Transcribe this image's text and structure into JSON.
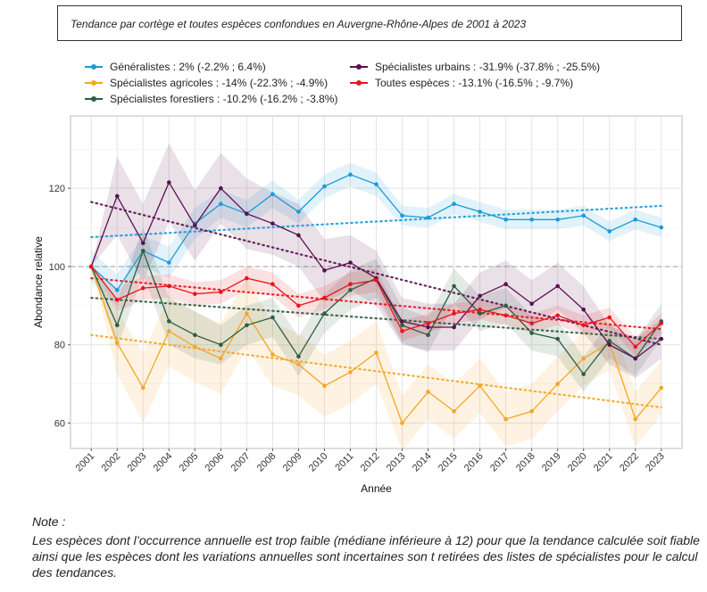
{
  "title": "Tendance par cortège et toutes espèces confondues en Auvergne-Rhône-Alpes de 2001 à 2023",
  "note": {
    "heading": "Note :",
    "text": "Les espèces dont l’occurrence annuelle est trop faible (médiane inférieure à 12) pour que la tendance calculée soit fiable ainsi que les espèces dont les variations annuelles sont incertaines son t retirées des listes de spécialistes pour le calcul des tendances."
  },
  "chart_data": {
    "type": "line",
    "xlabel": "Année",
    "ylabel": "Abondance relative",
    "x": [
      2001,
      2002,
      2003,
      2004,
      2005,
      2006,
      2007,
      2008,
      2009,
      2010,
      2011,
      2012,
      2013,
      2014,
      2015,
      2016,
      2017,
      2018,
      2019,
      2020,
      2021,
      2022,
      2023
    ],
    "xlim": [
      2000.2,
      2023.8
    ],
    "ylim": [
      53.5,
      138.5
    ],
    "yticks": [
      60,
      80,
      100,
      120
    ],
    "reference_line": 100,
    "series": [
      {
        "name": "Généralistes",
        "legend": "Généralistes : 2% (-2.2% ; 6.4%)",
        "color": "#1a9bd7",
        "values": [
          100,
          94,
          104,
          101,
          111,
          116,
          113.5,
          118.5,
          114,
          120.5,
          123.5,
          121,
          113,
          112.5,
          116,
          114,
          112,
          112,
          112,
          113,
          109,
          112,
          110
        ],
        "band": [
          4,
          4,
          4,
          4,
          4,
          3.5,
          3.5,
          3.5,
          3,
          3,
          3,
          3,
          2.5,
          2.5,
          2.5,
          2.5,
          2.5,
          2.5,
          2.5,
          2.5,
          2.5,
          2.5,
          2.5
        ],
        "trend": [
          107.5,
          115.5
        ]
      },
      {
        "name": "Spécialistes agricoles",
        "legend": "Spécialistes agricoles : -14% (-22.3% ; -4.9%)",
        "color": "#f5a623",
        "values": [
          100,
          80.5,
          69,
          83.5,
          79.5,
          76.5,
          88,
          77.5,
          75,
          69.5,
          73,
          78,
          60,
          68,
          63,
          69.5,
          61,
          63,
          70,
          76.5,
          80.5,
          61,
          69
        ],
        "band": [
          0,
          8,
          9,
          9,
          9,
          9,
          9,
          8,
          8,
          8,
          8,
          8,
          7,
          7,
          7,
          7,
          7,
          7,
          7,
          7,
          7,
          7,
          7
        ],
        "trend": [
          82.5,
          64
        ]
      },
      {
        "name": "Spécialistes forestiers",
        "legend": "Spécialistes forestiers : -10.2% (-16.2% ; -3.8%)",
        "color": "#2e5e3e",
        "values": [
          100,
          85,
          104,
          86,
          82.5,
          80,
          85,
          87,
          77,
          88,
          94,
          97,
          85,
          82.5,
          95,
          88,
          90,
          83,
          81.5,
          72.5,
          81,
          76.5,
          86
        ],
        "band": [
          0,
          6,
          6,
          6,
          6,
          5,
          5,
          5,
          5,
          5,
          5,
          5,
          4.5,
          4.5,
          4.5,
          4.5,
          4.5,
          4.5,
          4.5,
          4.5,
          4.5,
          4.5,
          4.5
        ],
        "trend": [
          92,
          81.5
        ]
      },
      {
        "name": "Spécialistes urbains",
        "legend": "Spécialistes urbains : -31.9% (-37.8% ; -25.5%)",
        "color": "#5c0f4f",
        "values": [
          100,
          118,
          106,
          121.5,
          110.5,
          120,
          113.5,
          111,
          108,
          99,
          101,
          97,
          86,
          84.5,
          84.5,
          92.5,
          95.5,
          90.5,
          95,
          89,
          80,
          76.5,
          81.5
        ],
        "band": [
          0,
          10,
          10,
          10,
          9,
          9,
          9,
          8,
          8,
          8,
          7,
          7,
          6,
          6,
          6,
          6,
          6,
          6,
          6,
          6,
          5,
          5,
          5
        ],
        "trend": [
          116.5,
          80
        ]
      },
      {
        "name": "Toutes espèces",
        "legend": "Toutes espèces : -13.1% (-16.5% ; -9.7%)",
        "color": "#e8141c",
        "values": [
          100,
          91.5,
          94.5,
          95,
          93,
          93.5,
          97,
          95.5,
          90,
          92,
          95.5,
          96.5,
          83.5,
          85.5,
          88,
          89,
          87.5,
          85.5,
          87.5,
          85,
          87,
          79.5,
          85.5
        ],
        "band": [
          0,
          3,
          3,
          3,
          3,
          3,
          3,
          3,
          3,
          3,
          3,
          3,
          2.5,
          2.5,
          2.5,
          2.5,
          2.5,
          2.5,
          2.5,
          2.5,
          2.5,
          2.5,
          2.5
        ],
        "trend": [
          97,
          84
        ]
      }
    ]
  }
}
